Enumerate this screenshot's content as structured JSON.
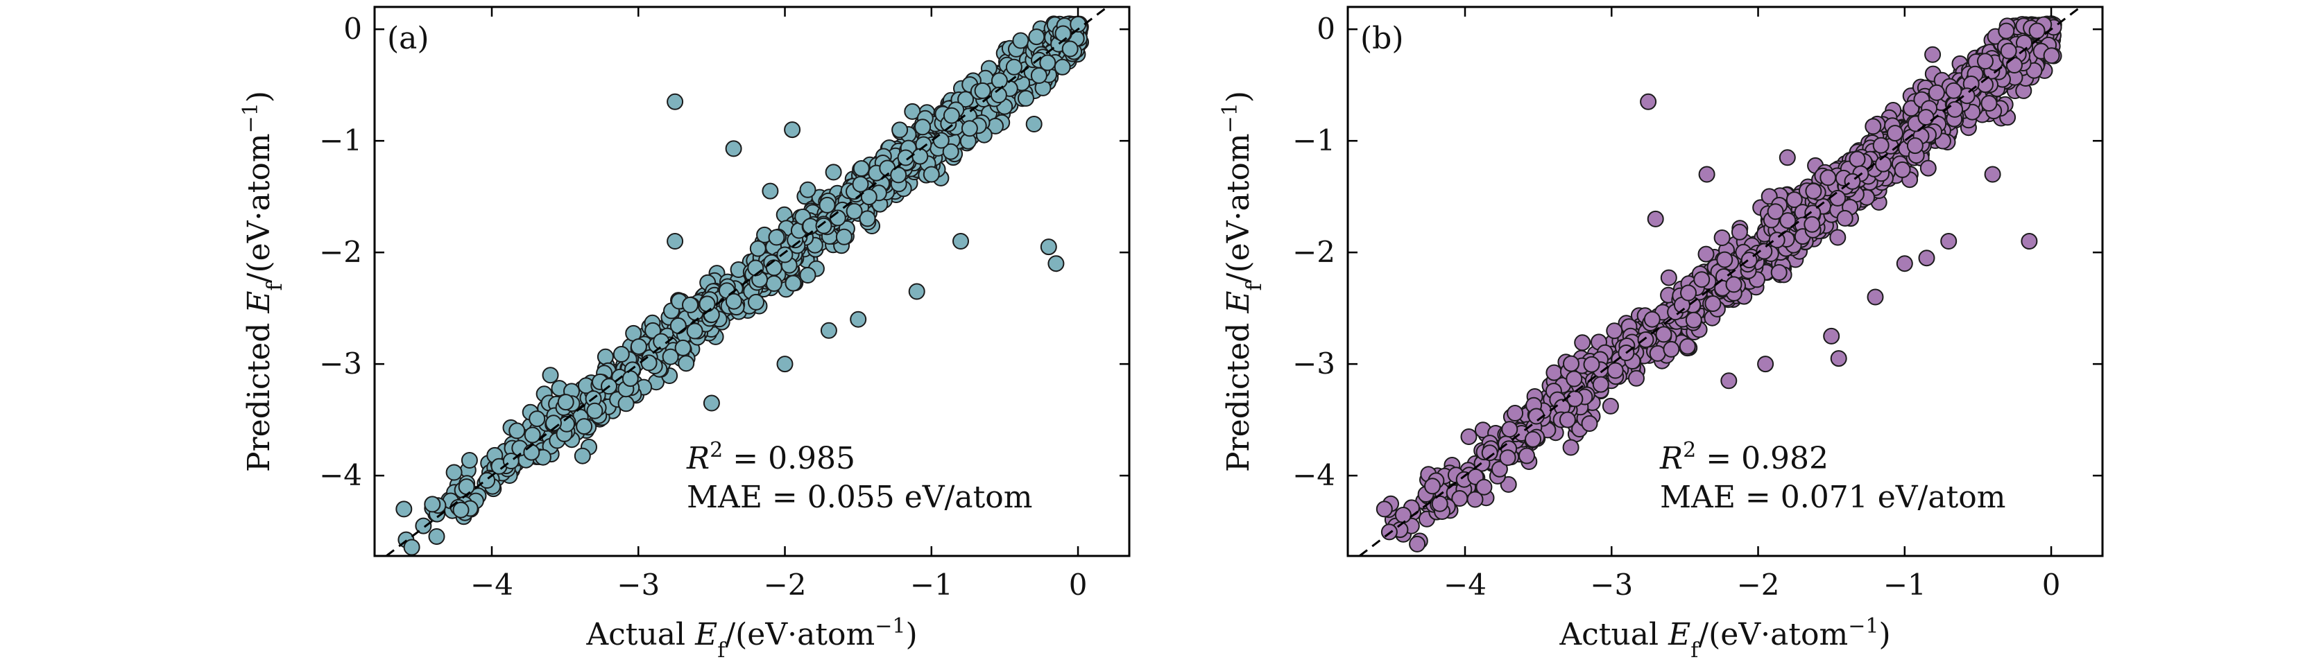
{
  "chart_data": [
    {
      "type": "scatter",
      "panel_label": "(a)",
      "xlabel_prefix": "Actual ",
      "ylabel_prefix": "Predicted ",
      "quantity": "E",
      "quantity_sub": "f",
      "unit_open": "/(eV·atom",
      "unit_exp": "−1",
      "unit_close": ")",
      "xlim": [
        -4.8,
        0.35
      ],
      "ylim": [
        -4.72,
        0.2
      ],
      "xticks": [
        -4,
        -3,
        -2,
        -1,
        0
      ],
      "yticks": [
        -4,
        -3,
        -2,
        -1,
        0
      ],
      "xtick_labels": [
        "−4",
        "−3",
        "−2",
        "−1",
        "0"
      ],
      "ytick_labels": [
        "−4",
        "−3",
        "−2",
        "−1",
        "0"
      ],
      "reference_line": "y = x (dashed)",
      "stats": {
        "r2_symbol": "R",
        "r2_exp": "2",
        "r2_text": " = 0.985",
        "mae_text": "MAE = 0.055 eV/atom"
      },
      "marker_color": "#7fb2bd",
      "cloud": {
        "n": 1700,
        "x_min": -4.6,
        "x_max": 0.02,
        "noise_sd": 0.12,
        "seed": 11
      },
      "outliers": [
        {
          "x": -2.75,
          "y": -0.65
        },
        {
          "x": -2.35,
          "y": -1.07
        },
        {
          "x": -2.1,
          "y": -1.45
        },
        {
          "x": -0.2,
          "y": -1.95
        },
        {
          "x": -0.15,
          "y": -2.1
        },
        {
          "x": -1.1,
          "y": -2.35
        },
        {
          "x": -0.8,
          "y": -1.9
        },
        {
          "x": -1.5,
          "y": -2.6
        },
        {
          "x": -2.0,
          "y": -3.0
        },
        {
          "x": -1.7,
          "y": -2.7
        },
        {
          "x": -2.75,
          "y": -1.9
        },
        {
          "x": -1.0,
          "y": -1.3
        },
        {
          "x": -3.6,
          "y": -3.1
        },
        {
          "x": -4.6,
          "y": -4.3
        },
        {
          "x": -0.3,
          "y": -0.85
        },
        {
          "x": -2.5,
          "y": -3.35
        },
        {
          "x": -1.95,
          "y": -0.9
        },
        {
          "x": -3.2,
          "y": -3.2
        }
      ]
    },
    {
      "type": "scatter",
      "panel_label": "(b)",
      "xlabel_prefix": "Actual ",
      "ylabel_prefix": "Predicted ",
      "quantity": "E",
      "quantity_sub": "f",
      "unit_open": "/(eV·atom",
      "unit_exp": "−1",
      "unit_close": ")",
      "xlim": [
        -4.8,
        0.35
      ],
      "ylim": [
        -4.72,
        0.2
      ],
      "xticks": [
        -4,
        -3,
        -2,
        -1,
        0
      ],
      "yticks": [
        -4,
        -3,
        -2,
        -1,
        0
      ],
      "xtick_labels": [
        "−4",
        "−3",
        "−2",
        "−1",
        "0"
      ],
      "ytick_labels": [
        "−4",
        "−3",
        "−2",
        "−1",
        "0"
      ],
      "reference_line": "y = x (dashed)",
      "stats": {
        "r2_symbol": "R",
        "r2_exp": "2",
        "r2_text": " = 0.982",
        "mae_text": "MAE = 0.071 eV/atom"
      },
      "marker_color": "#a77bb4",
      "cloud": {
        "n": 1700,
        "x_min": -4.6,
        "x_max": 0.02,
        "noise_sd": 0.14,
        "seed": 23
      },
      "outliers": [
        {
          "x": -2.75,
          "y": -0.65
        },
        {
          "x": -1.8,
          "y": -1.15
        },
        {
          "x": -2.35,
          "y": -1.3
        },
        {
          "x": -2.7,
          "y": -1.7
        },
        {
          "x": -0.7,
          "y": -1.9
        },
        {
          "x": -0.15,
          "y": -1.9
        },
        {
          "x": -1.0,
          "y": -2.1
        },
        {
          "x": -1.5,
          "y": -2.75
        },
        {
          "x": -1.45,
          "y": -2.95
        },
        {
          "x": -1.95,
          "y": -3.0
        },
        {
          "x": -2.2,
          "y": -3.15
        },
        {
          "x": -2.9,
          "y": -2.9
        },
        {
          "x": -4.55,
          "y": -4.3
        },
        {
          "x": -0.85,
          "y": -2.05
        },
        {
          "x": -0.4,
          "y": -1.3
        },
        {
          "x": -3.3,
          "y": -3.5
        },
        {
          "x": -1.2,
          "y": -2.4
        }
      ]
    }
  ]
}
